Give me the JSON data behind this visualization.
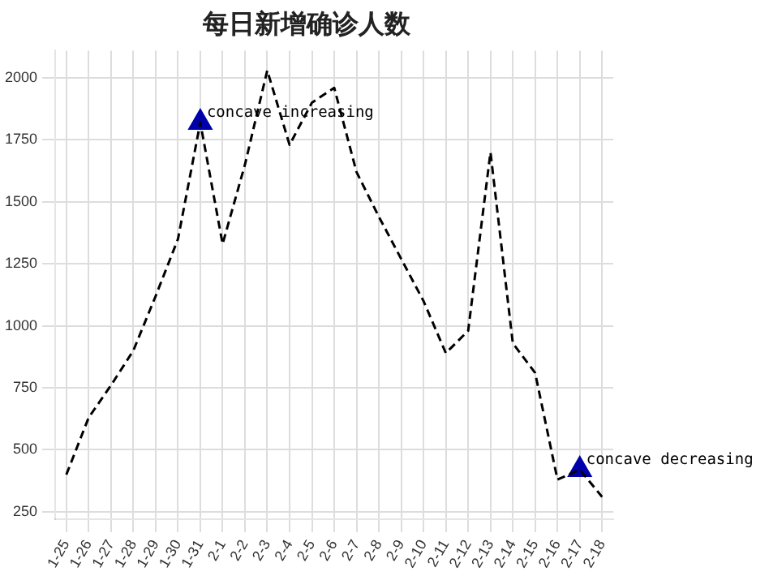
{
  "chart_data": {
    "type": "line",
    "title": "每日新增确诊人数",
    "categories": [
      "1-25",
      "1-26",
      "1-27",
      "1-28",
      "1-29",
      "1-30",
      "1-31",
      "2-1",
      "2-2",
      "2-3",
      "2-4",
      "2-5",
      "2-6",
      "2-7",
      "2-8",
      "2-9",
      "2-10",
      "2-11",
      "2-12",
      "2-13",
      "2-14",
      "2-15",
      "2-16",
      "2-17",
      "2-18"
    ],
    "series": [
      {
        "type": "line",
        "color": "#000000",
        "line_style": "dashed",
        "marker": "none",
        "values": [
          400,
          630,
          760,
          900,
          1120,
          1350,
          1820,
          1330,
          1650,
          2030,
          1730,
          1900,
          1960,
          1620,
          1440,
          1270,
          1100,
          890,
          980,
          1700,
          930,
          810,
          380,
          420,
          310
        ]
      },
      {
        "type": "scatter",
        "color": "#0000aa",
        "marker": "triangle",
        "x": [
          "1-31",
          "2-17"
        ],
        "values": [
          1820,
          420
        ]
      }
    ],
    "ylim": [
      220,
      2110
    ],
    "yticks": [
      250,
      500,
      750,
      1000,
      1250,
      1500,
      1750,
      2000
    ],
    "grid": true,
    "legend": false,
    "annotations": [
      {
        "text": "concave increasing",
        "x": "1-31",
        "y": 1820
      },
      {
        "text": "concave decreasing",
        "x": "2-17",
        "y": 420
      }
    ]
  }
}
